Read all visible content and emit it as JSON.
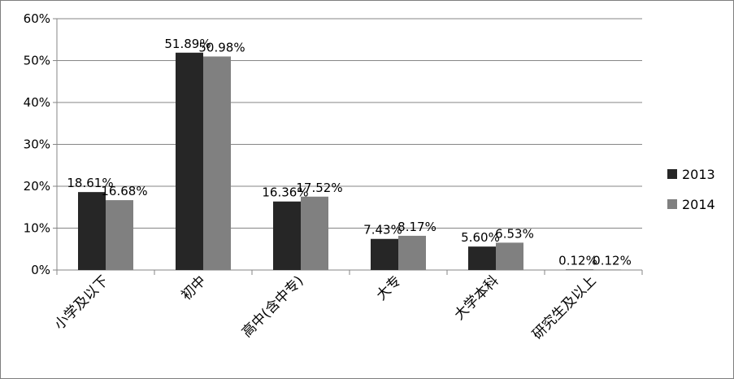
{
  "chart_data": {
    "type": "bar",
    "categories": [
      "小学及以下",
      "初中",
      "高中(含中专)",
      "大专",
      "大学本科",
      "研究生及以上"
    ],
    "series": [
      {
        "name": "2013",
        "color": "#262626",
        "values": [
          18.61,
          51.89,
          16.36,
          7.43,
          5.6,
          0.12
        ],
        "labels": [
          "18.61%",
          "51.89%",
          "16.36%",
          "7.43%",
          "5.60%",
          "0.12%"
        ]
      },
      {
        "name": "2014",
        "color": "#808080",
        "values": [
          16.68,
          50.98,
          17.52,
          8.17,
          6.53,
          0.12
        ],
        "labels": [
          "16.68%",
          "50.98%",
          "17.52%",
          "8.17%",
          "6.53%",
          "0.12%"
        ]
      }
    ],
    "y_ticks": [
      "0%",
      "10%",
      "20%",
      "30%",
      "40%",
      "50%",
      "60%"
    ],
    "ylim": [
      0,
      60
    ],
    "grid": true,
    "legend_position": "right"
  }
}
